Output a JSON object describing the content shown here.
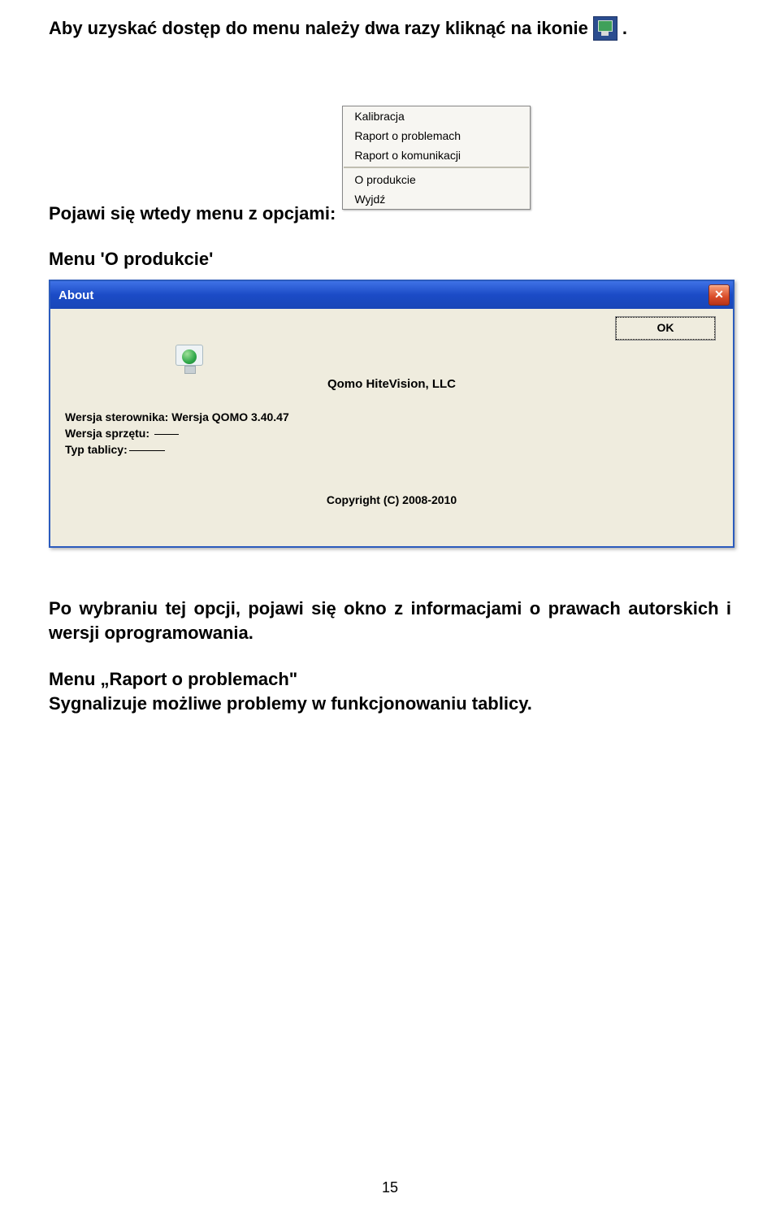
{
  "doc": {
    "line1_a": "Aby uzyskać dostęp do menu należy dwa razy kliknąć na ikonie",
    "line1_b": ".",
    "line2": "Pojawi się wtedy menu z opcjami:",
    "heading_product": "Menu 'O produkcie'",
    "para_after_dialog": "Po wybraniu tej opcji, pojawi się okno z informacjami o prawach autorskich i wersji oprogramowania.",
    "raport_title": "Menu „Raport o problemach\"",
    "raport_body": "Sygnalizuje możliwe problemy w funkcjonowaniu tablicy.",
    "page_number": "15"
  },
  "context_menu": {
    "items_top": [
      "Kalibracja",
      "Raport o problemach",
      "Raport o komunikacji"
    ],
    "items_bottom": [
      "O produkcie",
      "Wyjdź"
    ]
  },
  "dialog": {
    "title": "About",
    "ok_label": "OK",
    "company": "Qomo HiteVision, LLC",
    "driver_label": "Wersja sterownika:",
    "driver_value": "Wersja QOMO 3.40.47",
    "hw_label": "Wersja sprzętu:",
    "board_label": "Typ tablicy:",
    "copyright": "Copyright (C) 2008-2010",
    "titlebar_color": "#1b4bc6",
    "body_bg": "#efecde"
  }
}
